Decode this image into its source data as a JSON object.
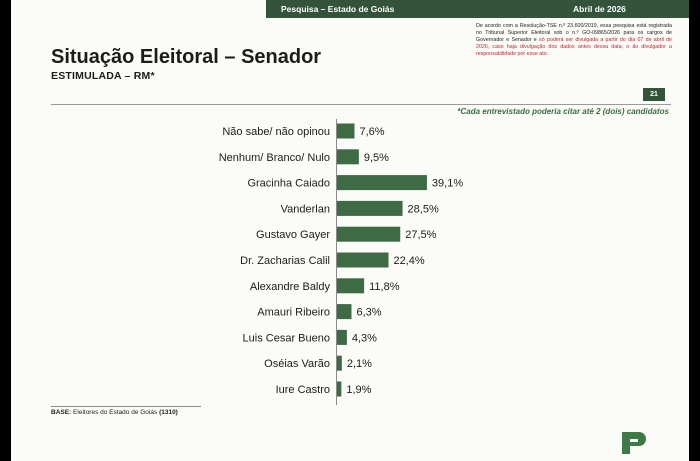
{
  "header": {
    "left": "Pesquisa – Estado de Goiás",
    "right": "Abril de 2026"
  },
  "title": "Situação Eleitoral – Senador",
  "subtitle": "ESTIMULADA – RM*",
  "legal": {
    "part1": "De acordo com a Resolução-TSE n.º 23.600/2019, essa pesquisa está registrada no Tribunal Superior Eleitoral sob o n.º GO-09865/2026 para os cargos de Governador e Senador e ",
    "part2": "só poderá ser divulgada a partir do dia 07 de abril de 2026, caso haja divulgação dos dados antes dessa data, o ão divulgador a responsabilidade por esse ato."
  },
  "page_number": "21",
  "note": "*Cada entrevistado poderia citar até 2 (dois) candidatos",
  "base": {
    "label": "BASE:",
    "text": "Eleitores do Estado de Goiás",
    "count": "(1310)"
  },
  "colors": {
    "bar": "#3e6a44",
    "header": "#33543a",
    "accent_red": "#c0262d"
  },
  "chart_data": {
    "type": "bar",
    "orientation": "horizontal",
    "title": "Situação Eleitoral – Senador",
    "subtitle": "ESTIMULADA – RM*",
    "categories": [
      "Não sabe/ não opinou",
      "Nenhum/ Branco/ Nulo",
      "Gracinha Caiado",
      "Vanderlan",
      "Gustavo Gayer",
      "Dr. Zacharias Calil",
      "Alexandre Baldy",
      "Amauri Ribeiro",
      "Luis Cesar Bueno",
      "Oséias Varão",
      "Iure Castro"
    ],
    "values": [
      7.6,
      9.5,
      39.1,
      28.5,
      27.5,
      22.4,
      11.8,
      6.3,
      4.3,
      2.1,
      1.9
    ],
    "value_labels": [
      "7,6%",
      "9,5%",
      "39,1%",
      "28,5%",
      "27,5%",
      "22,4%",
      "11,8%",
      "6,3%",
      "4,3%",
      "2,1%",
      "1,9%"
    ],
    "unit": "%",
    "grid": false,
    "legend": "none"
  }
}
